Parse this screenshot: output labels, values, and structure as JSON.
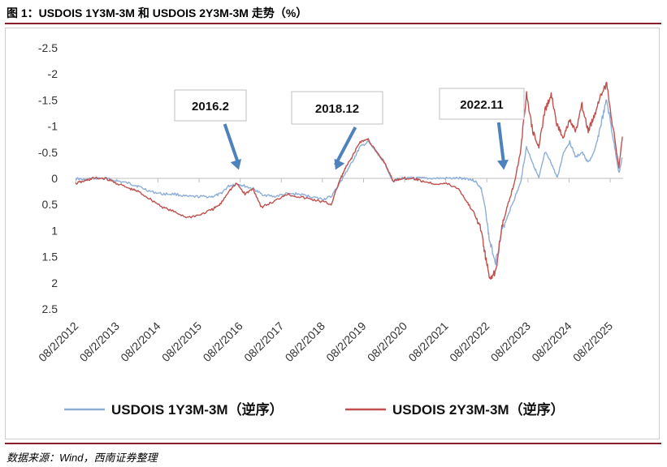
{
  "title": "图 1：USDOIS 1Y3M-3M 和 USDOIS 2Y3M-3M 走势（%）",
  "source": "数据来源：Wind，西南证券整理",
  "chart_data": {
    "type": "line",
    "title": "图 1：USDOIS 1Y3M-3M 和 USDOIS 2Y3M-3M 走势（%）",
    "xlabel": "",
    "ylabel": "",
    "y_axis_reversed": true,
    "ylim": [
      -2.5,
      2.5
    ],
    "y_ticks": [
      "-2.5",
      "-2",
      "-1.5",
      "-1",
      "-0.5",
      "0",
      "0.5",
      "1",
      "1.5",
      "2",
      "2.5"
    ],
    "y_tick_values": [
      -2.5,
      -2,
      -1.5,
      -1,
      -0.5,
      0,
      0.5,
      1,
      1.5,
      2,
      2.5
    ],
    "x_range": [
      2012.58,
      2025.9
    ],
    "x_ticks": [
      "08/2/2012",
      "08/2/2013",
      "08/2/2014",
      "08/2/2015",
      "08/2/2016",
      "08/2/2017",
      "08/2/2018",
      "08/2/2019",
      "08/2/2020",
      "08/2/2021",
      "08/2/2022",
      "08/2/2023",
      "08/2/2024",
      "08/2/2025"
    ],
    "x_tick_values": [
      2012.585,
      2013.585,
      2014.585,
      2015.585,
      2016.585,
      2017.585,
      2018.585,
      2019.585,
      2020.585,
      2021.585,
      2022.585,
      2023.585,
      2024.585,
      2025.585
    ],
    "grid": false,
    "legend_position": "bottom",
    "series": [
      {
        "name": "USDOIS 1Y3M-3M（逆序）",
        "color": "#8eaed6",
        "x": [
          2012.58,
          2012.8,
          2013.0,
          2013.3,
          2013.6,
          2013.9,
          2014.1,
          2014.4,
          2014.7,
          2015.0,
          2015.3,
          2015.6,
          2015.9,
          2016.1,
          2016.3,
          2016.5,
          2016.7,
          2016.9,
          2017.1,
          2017.4,
          2017.7,
          2018.0,
          2018.3,
          2018.6,
          2018.8,
          2019.0,
          2019.15,
          2019.3,
          2019.5,
          2019.7,
          2019.9,
          2020.1,
          2020.3,
          2020.5,
          2020.8,
          2021.0,
          2021.3,
          2021.6,
          2021.9,
          2022.1,
          2022.3,
          2022.45,
          2022.55,
          2022.65,
          2022.8,
          2022.95,
          2023.1,
          2023.25,
          2023.4,
          2023.55,
          2023.7,
          2023.85,
          2024.0,
          2024.15,
          2024.3,
          2024.45,
          2024.6,
          2024.75,
          2024.9,
          2025.05,
          2025.2,
          2025.35,
          2025.5,
          2025.65,
          2025.8,
          2025.88
        ],
        "values": [
          0.0,
          0.03,
          0.0,
          0.0,
          0.05,
          0.1,
          0.15,
          0.25,
          0.3,
          0.3,
          0.35,
          0.35,
          0.35,
          0.3,
          0.15,
          0.1,
          0.15,
          0.2,
          0.3,
          0.35,
          0.3,
          0.3,
          0.35,
          0.4,
          0.35,
          0.1,
          -0.1,
          -0.3,
          -0.6,
          -0.7,
          -0.5,
          -0.3,
          0.05,
          0.0,
          0.0,
          0.0,
          0.0,
          0.0,
          0.0,
          0.0,
          0.05,
          0.2,
          0.6,
          1.2,
          1.6,
          1.0,
          0.7,
          0.4,
          0.1,
          -0.6,
          -0.3,
          0.0,
          -0.5,
          -0.3,
          0.0,
          -0.5,
          -0.7,
          -0.4,
          -0.5,
          -0.3,
          -0.5,
          -1.0,
          -1.5,
          -0.8,
          -0.1,
          -0.4
        ]
      },
      {
        "name": "USDOIS 2Y3M-3M（逆序）",
        "color": "#c0504d",
        "x": [
          2012.58,
          2012.8,
          2013.0,
          2013.3,
          2013.6,
          2013.9,
          2014.1,
          2014.4,
          2014.7,
          2015.0,
          2015.3,
          2015.6,
          2015.9,
          2016.1,
          2016.3,
          2016.5,
          2016.7,
          2016.9,
          2017.1,
          2017.4,
          2017.7,
          2018.0,
          2018.3,
          2018.6,
          2018.8,
          2019.0,
          2019.15,
          2019.3,
          2019.5,
          2019.7,
          2019.9,
          2020.1,
          2020.3,
          2020.5,
          2020.8,
          2021.0,
          2021.3,
          2021.6,
          2021.9,
          2022.1,
          2022.3,
          2022.45,
          2022.55,
          2022.65,
          2022.8,
          2022.95,
          2023.1,
          2023.25,
          2023.4,
          2023.55,
          2023.7,
          2023.85,
          2024.0,
          2024.15,
          2024.3,
          2024.45,
          2024.6,
          2024.75,
          2024.9,
          2025.05,
          2025.2,
          2025.35,
          2025.5,
          2025.65,
          2025.8,
          2025.88
        ],
        "values": [
          0.1,
          0.05,
          0.0,
          0.0,
          0.1,
          0.2,
          0.25,
          0.4,
          0.55,
          0.65,
          0.75,
          0.7,
          0.6,
          0.5,
          0.25,
          0.1,
          0.3,
          0.2,
          0.55,
          0.45,
          0.3,
          0.35,
          0.4,
          0.45,
          0.5,
          0.05,
          -0.2,
          -0.4,
          -0.7,
          -0.75,
          -0.5,
          -0.3,
          0.05,
          0.0,
          0.0,
          0.05,
          0.1,
          0.1,
          0.2,
          0.45,
          0.7,
          1.0,
          1.5,
          1.9,
          1.8,
          0.9,
          0.5,
          0.1,
          -0.5,
          -1.6,
          -0.9,
          -0.6,
          -1.3,
          -1.6,
          -1.0,
          -0.8,
          -1.1,
          -0.9,
          -1.4,
          -0.9,
          -1.2,
          -1.6,
          -1.8,
          -1.0,
          -0.2,
          -0.8
        ]
      }
    ],
    "annotations": [
      {
        "text": "2016.2",
        "x": 2016.55,
        "y": -0.1
      },
      {
        "text": "2018.12",
        "x": 2018.9,
        "y": -0.1
      },
      {
        "text": "2022.11",
        "x": 2023.0,
        "y": -0.1
      }
    ]
  }
}
